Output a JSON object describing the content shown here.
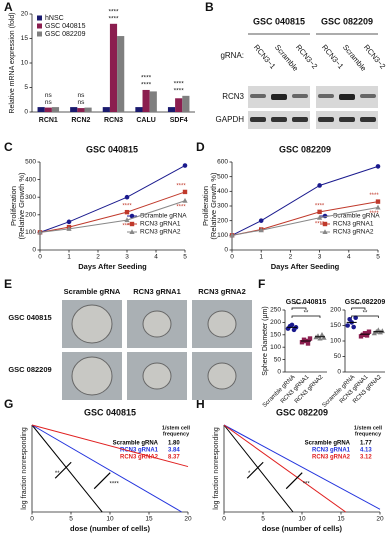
{
  "panels": [
    "A",
    "B",
    "C",
    "D",
    "E",
    "F",
    "G",
    "H"
  ],
  "blot": {
    "groups": [
      "GSC 040815",
      "GSC 082209"
    ],
    "row_label": "gRNA:",
    "lanes": [
      "RCN3−1",
      "Scramble",
      "RCN3−2",
      "RCN3−1",
      "Scramble",
      "RCN3−2"
    ],
    "bands": [
      "RCN3",
      "GAPDH"
    ]
  },
  "spheres": {
    "columns": [
      "Scramble gRNA",
      "RCN3 gRNA1",
      "RCN3 gRNA2"
    ],
    "rows": [
      "GSC 040815",
      "GSC 082209"
    ]
  },
  "chart_data": [
    {
      "type": "bar",
      "ylabel": "Relative mRNA expression (fold)",
      "categories": [
        "RCN1",
        "RCN2",
        "RCN3",
        "CALU",
        "SDF4"
      ],
      "series": [
        {
          "name": "hNSC",
          "color": "#1a1a6e",
          "values": [
            1,
            1,
            1,
            1,
            1
          ]
        },
        {
          "name": "GSC 040815",
          "color": "#8b1e4f",
          "values": [
            0.9,
            0.8,
            18,
            4.5,
            2.8
          ]
        },
        {
          "name": "GSC 082209",
          "color": "#7f7f7f",
          "values": [
            1,
            0.9,
            15.5,
            4.2,
            3.3
          ]
        }
      ],
      "ylim": [
        0,
        20
      ],
      "yticks": [
        0,
        5,
        10,
        15,
        20
      ],
      "legend": "upper left",
      "annotations": [
        "ns",
        "ns",
        "ns",
        "ns",
        "****",
        "****",
        "****",
        "****",
        "****",
        "****"
      ]
    },
    {
      "type": "line",
      "title": "GSC 040815",
      "xlabel": "Days After Seeding",
      "ylabel": [
        "Proliferation",
        "(Relative Growth %)"
      ],
      "x": [
        0,
        1,
        3,
        5
      ],
      "xlim": [
        0,
        5
      ],
      "xticks": [
        0,
        1,
        2,
        3,
        4,
        5
      ],
      "ylim": [
        0,
        500
      ],
      "yticks": [
        0,
        100,
        200,
        300,
        400,
        500
      ],
      "series": [
        {
          "name": "Scramble gRNA",
          "color": "#1a1a8e",
          "marker": "circle",
          "values": [
            100,
            160,
            300,
            480
          ]
        },
        {
          "name": "RCN3 gRNA1",
          "color": "#c0392b",
          "marker": "square",
          "values": [
            100,
            130,
            215,
            330
          ]
        },
        {
          "name": "RCN3 gRNA2",
          "color": "#888888",
          "marker": "triangle",
          "values": [
            100,
            120,
            170,
            280
          ]
        }
      ],
      "legend": "lower right",
      "annotations": [
        "****",
        "****",
        "****",
        "****"
      ]
    },
    {
      "type": "line",
      "title": "GSC 082209",
      "xlabel": "Days After Seeding",
      "ylabel": [
        "Proliferation",
        "(Relative Growth %)"
      ],
      "x": [
        0,
        1,
        3,
        5
      ],
      "xlim": [
        0,
        5
      ],
      "xticks": [
        0,
        1,
        2,
        3,
        4,
        5
      ],
      "ylim": [
        0,
        600
      ],
      "yticks": [
        0,
        100,
        200,
        300,
        400,
        500,
        600
      ],
      "series": [
        {
          "name": "Scramble gRNA",
          "color": "#1a1a8e",
          "marker": "circle",
          "values": [
            100,
            200,
            440,
            570
          ]
        },
        {
          "name": "RCN3 gRNA1",
          "color": "#c0392b",
          "marker": "square",
          "values": [
            100,
            140,
            260,
            330
          ]
        },
        {
          "name": "RCN3 gRNA2",
          "color": "#888888",
          "marker": "triangle",
          "values": [
            100,
            135,
            220,
            290
          ]
        }
      ],
      "legend": "lower right",
      "annotations": [
        "****",
        "****",
        "****",
        "****"
      ]
    },
    {
      "type": "strip",
      "title": "GSC 040815",
      "ylabel": "Sphere Diameter (µm)",
      "categories": [
        "Scramble gRNA",
        "RCN3 gRNA1",
        "RCN3 gRNA2"
      ],
      "colors": [
        "#1a1a8e",
        "#8b1e4f",
        "#7f7f7f"
      ],
      "values": [
        [
          175,
          185,
          190,
          170,
          180
        ],
        [
          120,
          130,
          125,
          115,
          135
        ],
        [
          140,
          145,
          135,
          150,
          138
        ]
      ],
      "means": [
        180,
        125,
        142
      ],
      "ylim": [
        0,
        250
      ],
      "yticks": [
        0,
        50,
        100,
        150,
        200,
        250
      ],
      "annotations": [
        "****",
        "**"
      ]
    },
    {
      "type": "strip",
      "title": "GSC 082209",
      "ylabel": "Sphere Diameter (µm)",
      "categories": [
        "Scramble gRNA",
        "RCN3 gRNA1",
        "RCN3 gRNA2"
      ],
      "colors": [
        "#1a1a8e",
        "#8b1e4f",
        "#7f7f7f"
      ],
      "values": [
        [
          150,
          170,
          160,
          145,
          175
        ],
        [
          115,
          120,
          125,
          118,
          130
        ],
        [
          125,
          130,
          135,
          128,
          132
        ]
      ],
      "means": [
        160,
        122,
        130
      ],
      "ylim": [
        0,
        200
      ],
      "yticks": [
        0,
        50,
        100,
        150,
        200
      ],
      "annotations": [
        "***",
        "**"
      ]
    },
    {
      "type": "ld",
      "title": "GSC 040815",
      "xlabel": "dose (number of cells)",
      "ylabel": "log fraction nonresponding",
      "table_header": [
        "1/stem cell",
        "frequency"
      ],
      "categories": [
        "Scramble gRNA",
        "RCN3 gRNA1",
        "RCN3 gRNA2"
      ],
      "colors": [
        "#000000",
        "#2233dd",
        "#e02020"
      ],
      "values": [
        1.8,
        3.84,
        8.37
      ],
      "value_labels": [
        "1.80",
        "3.84",
        "8.37"
      ],
      "xlim": [
        0,
        20
      ],
      "xticks": [
        0,
        5,
        10,
        15,
        20
      ],
      "ylim": [
        -5,
        0
      ],
      "annotations": [
        "**",
        "****"
      ]
    },
    {
      "type": "ld",
      "title": "GSC 082209",
      "xlabel": "dose (number of cells)",
      "ylabel": "log fraction nonresponding",
      "table_header": [
        "1/stem cell",
        "frequency"
      ],
      "categories": [
        "Scramble gRNA",
        "RCN3 gRNA1",
        "RCN3 gRNA2"
      ],
      "colors": [
        "#000000",
        "#2233dd",
        "#e02020"
      ],
      "values": [
        1.77,
        4.13,
        3.12
      ],
      "value_labels": [
        "1.77",
        "4.13",
        "3.12"
      ],
      "xlim": [
        0,
        20
      ],
      "xticks": [
        0,
        5,
        10,
        15,
        20
      ],
      "ylim": [
        -5,
        0
      ],
      "annotations": [
        "*",
        "***"
      ]
    }
  ]
}
